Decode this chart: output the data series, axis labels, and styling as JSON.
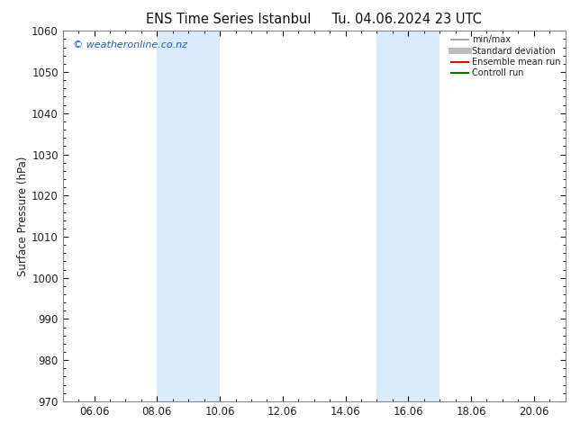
{
  "title_left": "ENS Time Series Istanbul",
  "title_right": "Tu. 04.06.2024 23 UTC",
  "ylabel": "Surface Pressure (hPa)",
  "ylim": [
    970,
    1060
  ],
  "yticks": [
    970,
    980,
    990,
    1000,
    1010,
    1020,
    1030,
    1040,
    1050,
    1060
  ],
  "xlim": [
    5.0,
    21.0
  ],
  "xtick_labels": [
    "06.06",
    "08.06",
    "10.06",
    "12.06",
    "14.06",
    "16.06",
    "18.06",
    "20.06"
  ],
  "xtick_positions": [
    6,
    8,
    10,
    12,
    14,
    16,
    18,
    20
  ],
  "shaded_bands": [
    {
      "xmin": 8.0,
      "xmax": 10.0
    },
    {
      "xmin": 15.0,
      "xmax": 17.0
    }
  ],
  "shaded_color": "#daeaf8",
  "background_color": "#ffffff",
  "watermark_text": "© weatheronline.co.nz",
  "watermark_color": "#1a5bc8",
  "legend_items": [
    {
      "label": "min/max",
      "color": "#aaaaaa",
      "lw": 1.5,
      "ls": "-"
    },
    {
      "label": "Standard deviation",
      "color": "#bbbbbb",
      "lw": 5,
      "ls": "-"
    },
    {
      "label": "Ensemble mean run",
      "color": "#ee0000",
      "lw": 1.5,
      "ls": "-"
    },
    {
      "label": "Controll run",
      "color": "#007700",
      "lw": 1.5,
      "ls": "-"
    }
  ],
  "spine_color": "#888888",
  "font_size": 8.5,
  "title_font_size": 10.5,
  "minor_xtick_step": 0.5
}
